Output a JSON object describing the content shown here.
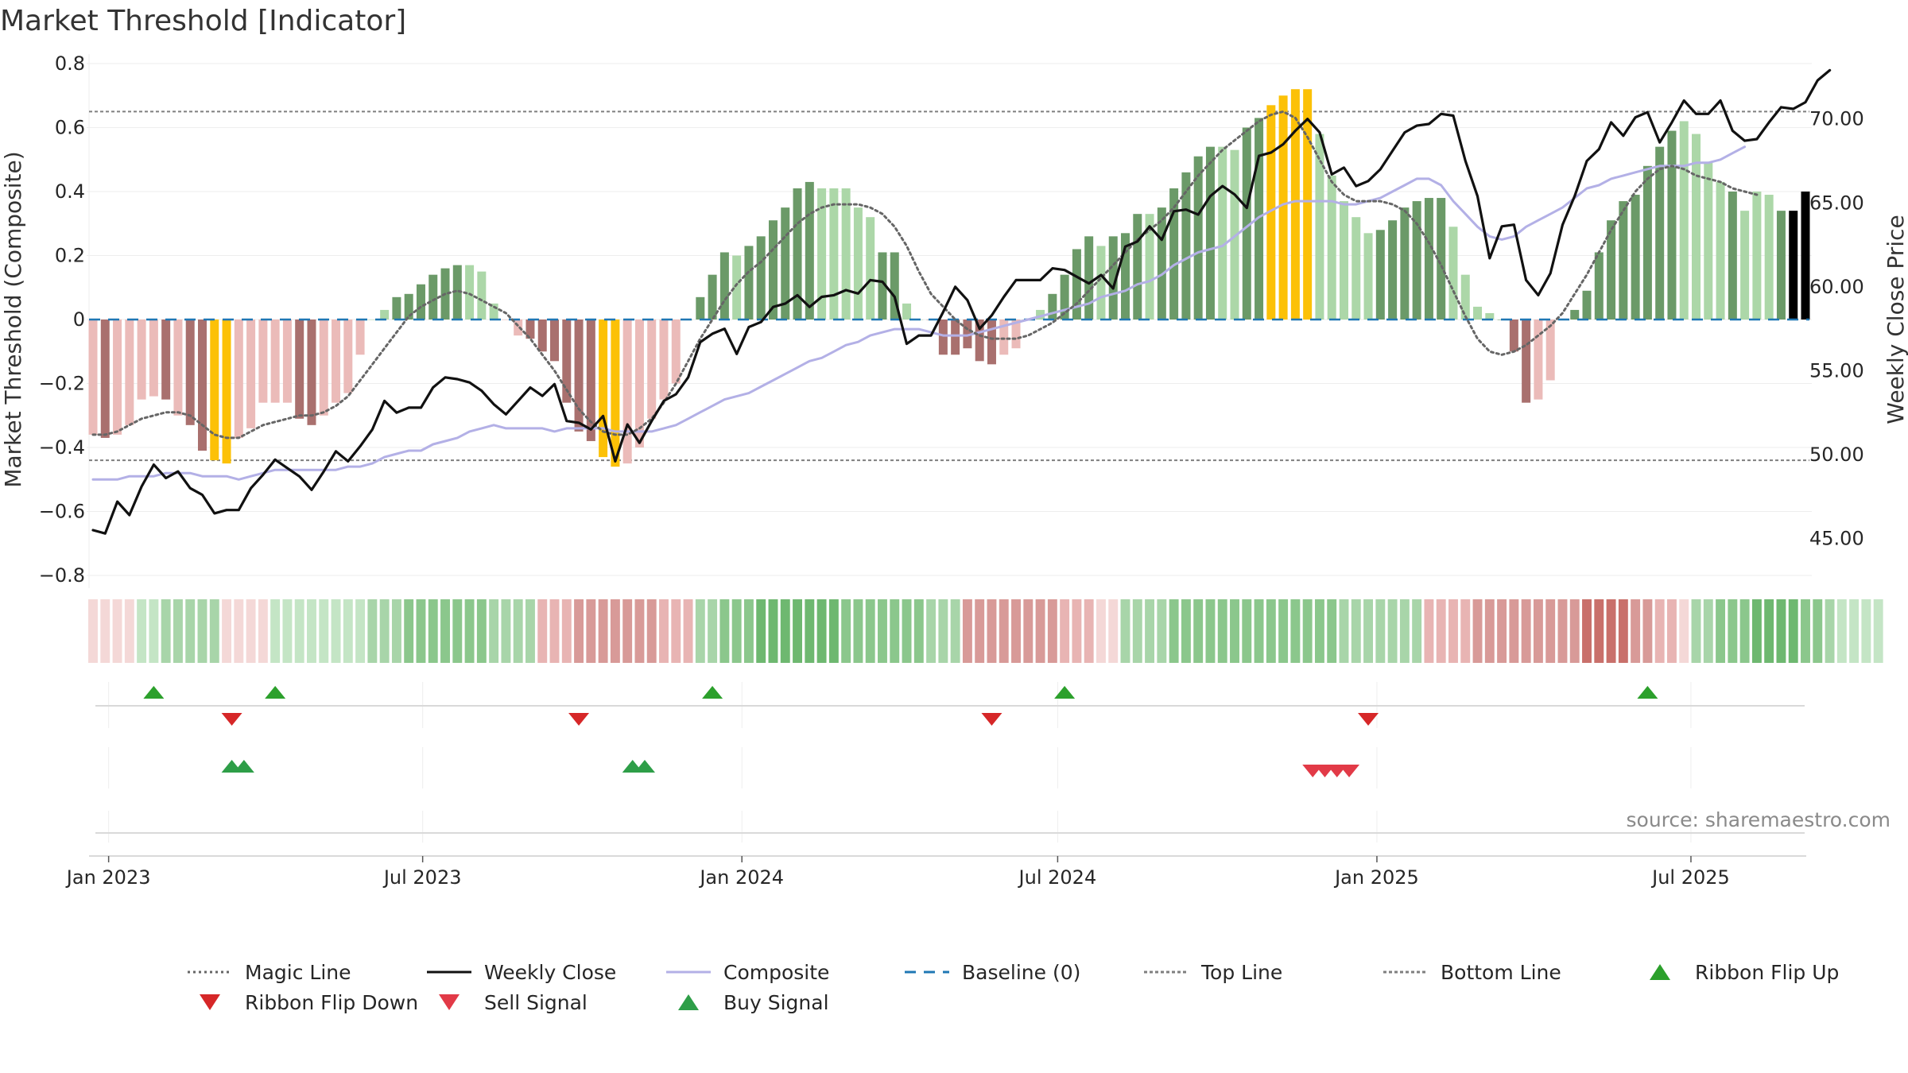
{
  "chart_data": {
    "type": "bar",
    "title": "Market Threshold [Indicator]",
    "ylabel": "Market Threshold (Composite)",
    "y2label": "Weekly Close Price",
    "ylim": [
      -0.8,
      0.8
    ],
    "y2lim": [
      42.8,
      73.3
    ],
    "yticks": [
      "0.8",
      "0.6",
      "0.4",
      "0.2",
      "0",
      "−0.2",
      "−0.4",
      "−0.6",
      "−0.8"
    ],
    "y2ticks": [
      "70.00",
      "65.00",
      "60.00",
      "55.00",
      "50.00",
      "45.00"
    ],
    "xticks": [
      "Jan 2023",
      "Jul 2023",
      "Jan 2024",
      "Jul 2024",
      "Jan 2025",
      "Jul 2025"
    ],
    "start_date": "2022-12-23",
    "top_line": 0.65,
    "bottom_line": -0.44,
    "bars": [
      -0.36,
      -0.37,
      -0.36,
      -0.33,
      -0.25,
      -0.24,
      -0.25,
      -0.3,
      -0.33,
      -0.41,
      -0.44,
      -0.45,
      -0.37,
      -0.34,
      -0.26,
      -0.26,
      -0.26,
      -0.31,
      -0.33,
      -0.3,
      -0.26,
      -0.23,
      -0.11,
      0,
      0.03,
      0.07,
      0.08,
      0.11,
      0.14,
      0.16,
      0.17,
      0.17,
      0.15,
      0.05,
      0,
      -0.05,
      -0.06,
      -0.1,
      -0.13,
      -0.26,
      -0.35,
      -0.38,
      -0.43,
      -0.46,
      -0.45,
      -0.4,
      -0.31,
      -0.25,
      -0.2,
      0,
      0.07,
      0.14,
      0.21,
      0.2,
      0.23,
      0.26,
      0.31,
      0.35,
      0.41,
      0.43,
      0.41,
      0.41,
      0.41,
      0.35,
      0.32,
      0.21,
      0.21,
      0.05,
      0,
      0,
      -0.11,
      -0.11,
      -0.09,
      -0.13,
      -0.14,
      -0.11,
      -0.09,
      0,
      0.03,
      0.08,
      0.14,
      0.22,
      0.26,
      0.23,
      0.26,
      0.27,
      0.33,
      0.33,
      0.35,
      0.41,
      0.46,
      0.51,
      0.54,
      0.54,
      0.53,
      0.6,
      0.63,
      0.67,
      0.7,
      0.72,
      0.72,
      0.58,
      0.45,
      0.37,
      0.32,
      0.27,
      0.28,
      0.31,
      0.35,
      0.37,
      0.38,
      0.38,
      0.29,
      0.14,
      0.04,
      0.02,
      0,
      -0.1,
      -0.26,
      -0.25,
      -0.19,
      0,
      0.03,
      0.09,
      0.21,
      0.31,
      0.37,
      0.39,
      0.48,
      0.54,
      0.59,
      0.62,
      0.58,
      0.49,
      0.43,
      0.4,
      0.34,
      0.4,
      0.39,
      0.34,
      0.34,
      0.4
    ],
    "bar_colors": [
      "#ebbbb9",
      "#a9706e",
      "#ebbbb9",
      "#ebbbb9",
      "#ebbbb9",
      "#ebbbb9",
      "#a9706e",
      "#ebbbb9",
      "#a9706e",
      "#a9706e",
      "#fcc107",
      "#fcc107",
      "#ebbbb9",
      "#ebbbb9",
      "#ebbbb9",
      "#ebbbb9",
      "#ebbbb9",
      "#a9706e",
      "#a9706e",
      "#ebbbb9",
      "#ebbbb9",
      "#ebbbb9",
      "#ebbbb9",
      "#acd7a8",
      "#acd7a8",
      "#6b9a68",
      "#6b9a68",
      "#6b9a68",
      "#6b9a68",
      "#6b9a68",
      "#6b9a68",
      "#acd7a8",
      "#acd7a8",
      "#acd7a8",
      "#ebbbb9",
      "#ebbbb9",
      "#a9706e",
      "#a9706e",
      "#a9706e",
      "#a9706e",
      "#a9706e",
      "#a9706e",
      "#fcc107",
      "#fcc107",
      "#ebbbb9",
      "#ebbbb9",
      "#ebbbb9",
      "#ebbbb9",
      "#ebbbb9",
      "#6b9a68",
      "#6b9a68",
      "#6b9a68",
      "#6b9a68",
      "#acd7a8",
      "#6b9a68",
      "#6b9a68",
      "#6b9a68",
      "#6b9a68",
      "#6b9a68",
      "#6b9a68",
      "#acd7a8",
      "#acd7a8",
      "#acd7a8",
      "#acd7a8",
      "#acd7a8",
      "#6b9a68",
      "#6b9a68",
      "#acd7a8",
      "#acd7a8",
      "#a9706e",
      "#a9706e",
      "#a9706e",
      "#a9706e",
      "#a9706e",
      "#a9706e",
      "#ebbbb9",
      "#ebbbb9",
      "#6b9a68",
      "#acd7a8",
      "#6b9a68",
      "#6b9a68",
      "#6b9a68",
      "#6b9a68",
      "#acd7a8",
      "#6b9a68",
      "#6b9a68",
      "#6b9a68",
      "#acd7a8",
      "#6b9a68",
      "#6b9a68",
      "#6b9a68",
      "#6b9a68",
      "#6b9a68",
      "#acd7a8",
      "#acd7a8",
      "#6b9a68",
      "#6b9a68",
      "#fcc107",
      "#fcc107",
      "#fcc107",
      "#fcc107",
      "#acd7a8",
      "#acd7a8",
      "#acd7a8",
      "#acd7a8",
      "#acd7a8",
      "#6b9a68",
      "#6b9a68",
      "#6b9a68",
      "#6b9a68",
      "#6b9a68",
      "#6b9a68",
      "#acd7a8",
      "#acd7a8",
      "#acd7a8",
      "#acd7a8",
      "#6b9a68",
      "#a9706e",
      "#a9706e",
      "#ebbbb9",
      "#ebbbb9",
      "#acd7a8",
      "#6b9a68",
      "#6b9a68",
      "#6b9a68",
      "#6b9a68",
      "#6b9a68",
      "#6b9a68",
      "#6b9a68",
      "#6b9a68",
      "#6b9a68",
      "#acd7a8",
      "#acd7a8",
      "#acd7a8",
      "#acd7a8",
      "#6b9a68",
      "#acd7a8",
      "#acd7a8",
      "#acd7a8",
      "#6b9a68"
    ],
    "series": [
      {
        "name": "Magic Line",
        "color": "#666666",
        "style": "dotted",
        "axis": "left",
        "values": [
          -0.36,
          -0.36,
          -0.35,
          -0.33,
          -0.31,
          -0.3,
          -0.29,
          -0.29,
          -0.3,
          -0.33,
          -0.36,
          -0.37,
          -0.37,
          -0.35,
          -0.33,
          -0.32,
          -0.31,
          -0.3,
          -0.3,
          -0.29,
          -0.27,
          -0.24,
          -0.19,
          -0.14,
          -0.09,
          -0.04,
          0.01,
          0.04,
          0.06,
          0.08,
          0.09,
          0.08,
          0.06,
          0.04,
          0.02,
          -0.02,
          -0.06,
          -0.11,
          -0.16,
          -0.22,
          -0.28,
          -0.32,
          -0.35,
          -0.36,
          -0.36,
          -0.34,
          -0.31,
          -0.26,
          -0.2,
          -0.13,
          -0.06,
          0,
          0.06,
          0.11,
          0.15,
          0.18,
          0.22,
          0.26,
          0.3,
          0.33,
          0.35,
          0.36,
          0.36,
          0.36,
          0.35,
          0.33,
          0.29,
          0.23,
          0.15,
          0.08,
          0.04,
          0,
          -0.03,
          -0.05,
          -0.06,
          -0.06,
          -0.06,
          -0.05,
          -0.03,
          -0.01,
          0.02,
          0.05,
          0.09,
          0.13,
          0.17,
          0.21,
          0.25,
          0.28,
          0.31,
          0.35,
          0.4,
          0.45,
          0.49,
          0.53,
          0.56,
          0.59,
          0.62,
          0.64,
          0.65,
          0.63,
          0.57,
          0.5,
          0.43,
          0.39,
          0.37,
          0.37,
          0.37,
          0.36,
          0.34,
          0.3,
          0.24,
          0.17,
          0.09,
          0.01,
          -0.06,
          -0.1,
          -0.11,
          -0.1,
          -0.08,
          -0.05,
          -0.02,
          0.02,
          0.08,
          0.14,
          0.21,
          0.28,
          0.34,
          0.4,
          0.44,
          0.47,
          0.48,
          0.47,
          0.45,
          0.44,
          0.43,
          0.41,
          0.4,
          0.39
        ]
      },
      {
        "name": "Weekly Close",
        "color": "#111111",
        "style": "solid",
        "axis": "right",
        "values": [
          45.5,
          45.3,
          47.2,
          46.4,
          48.1,
          49.4,
          48.6,
          49.0,
          48.0,
          47.6,
          46.5,
          46.7,
          46.7,
          48.0,
          48.8,
          49.7,
          49.2,
          48.7,
          47.9,
          49.0,
          50.2,
          49.6,
          50.5,
          51.5,
          53.2,
          52.5,
          52.8,
          52.8,
          54.0,
          54.6,
          54.5,
          54.3,
          53.8,
          53.0,
          52.4,
          53.2,
          54.0,
          53.5,
          54.2,
          52.0,
          51.9,
          51.5,
          52.3,
          49.6,
          51.8,
          50.7,
          52.0,
          53.2,
          53.6,
          54.6,
          56.7,
          57.2,
          57.5,
          56.0,
          57.6,
          57.9,
          58.8,
          59.0,
          59.5,
          58.8,
          59.4,
          59.5,
          59.8,
          59.6,
          60.4,
          60.3,
          59.4,
          56.6,
          57.1,
          57.1,
          58.5,
          60.0,
          59.2,
          57.5,
          58.3,
          59.4,
          60.4,
          60.4,
          60.4,
          61.1,
          61.0,
          60.6,
          60.2,
          60.7,
          59.9,
          62.4,
          62.7,
          63.6,
          62.8,
          64.5,
          64.6,
          64.3,
          65.4,
          66.0,
          65.5,
          64.7,
          67.8,
          68.0,
          68.5,
          69.3,
          70.0,
          69.2,
          66.7,
          67.1,
          66.0,
          66.3,
          67.0,
          68.1,
          69.2,
          69.6,
          69.7,
          70.3,
          70.2,
          67.5,
          65.4,
          61.7,
          63.6,
          63.7,
          60.4,
          59.5,
          60.8,
          63.7,
          65.4,
          67.5,
          68.2,
          69.8,
          69.0,
          70.1,
          70.4,
          68.6,
          69.8,
          71.1,
          70.3,
          70.3,
          71.1,
          69.3,
          68.7,
          68.8,
          69.8,
          70.7,
          70.6,
          71.0,
          72.3,
          72.9
        ]
      },
      {
        "name": "Composite",
        "color": "#b3b0e6",
        "style": "solid",
        "axis": "left",
        "values": [
          -0.5,
          -0.5,
          -0.5,
          -0.49,
          -0.49,
          -0.49,
          -0.48,
          -0.48,
          -0.48,
          -0.49,
          -0.49,
          -0.49,
          -0.5,
          -0.49,
          -0.48,
          -0.47,
          -0.47,
          -0.47,
          -0.47,
          -0.47,
          -0.47,
          -0.46,
          -0.46,
          -0.45,
          -0.43,
          -0.42,
          -0.41,
          -0.41,
          -0.39,
          -0.38,
          -0.37,
          -0.35,
          -0.34,
          -0.33,
          -0.34,
          -0.34,
          -0.34,
          -0.34,
          -0.35,
          -0.34,
          -0.34,
          -0.34,
          -0.34,
          -0.35,
          -0.35,
          -0.35,
          -0.35,
          -0.34,
          -0.33,
          -0.31,
          -0.29,
          -0.27,
          -0.25,
          -0.24,
          -0.23,
          -0.21,
          -0.19,
          -0.17,
          -0.15,
          -0.13,
          -0.12,
          -0.1,
          -0.08,
          -0.07,
          -0.05,
          -0.04,
          -0.03,
          -0.03,
          -0.03,
          -0.04,
          -0.05,
          -0.05,
          -0.05,
          -0.04,
          -0.03,
          -0.02,
          -0.01,
          0,
          0.01,
          0.02,
          0.03,
          0.04,
          0.05,
          0.07,
          0.08,
          0.09,
          0.11,
          0.12,
          0.14,
          0.17,
          0.19,
          0.21,
          0.22,
          0.23,
          0.26,
          0.29,
          0.32,
          0.34,
          0.36,
          0.37,
          0.37,
          0.37,
          0.37,
          0.36,
          0.36,
          0.37,
          0.38,
          0.4,
          0.42,
          0.44,
          0.44,
          0.42,
          0.37,
          0.33,
          0.29,
          0.26,
          0.25,
          0.26,
          0.29,
          0.31,
          0.33,
          0.35,
          0.38,
          0.41,
          0.42,
          0.44,
          0.45,
          0.46,
          0.47,
          0.48,
          0.48,
          0.48,
          0.49,
          0.49,
          0.5,
          0.52,
          0.54
        ]
      },
      {
        "name": "Baseline (0)",
        "color": "#1f77b4",
        "style": "dashed"
      },
      {
        "name": "Top Line",
        "color": "#7f7f7f",
        "style": "dotted"
      },
      {
        "name": "Bottom Line",
        "color": "#7f7f7f",
        "style": "dotted"
      }
    ],
    "ribbon_colors": [
      "#f4d8d7",
      "#f4d8d7",
      "#f4d8d7",
      "#f4d8d7",
      "#c4e5c5",
      "#c4e5c5",
      "#a8d5a9",
      "#a8d5a9",
      "#a8d5a9",
      "#a8d5a9",
      "#a8d5a9",
      "#f4d8d7",
      "#f4d8d7",
      "#f4d8d7",
      "#f4d8d7",
      "#c4e5c5",
      "#c4e5c5",
      "#c4e5c5",
      "#c4e5c5",
      "#c4e5c5",
      "#c4e5c5",
      "#c4e5c5",
      "#c4e5c5",
      "#a8d5a9",
      "#a8d5a9",
      "#a8d5a9",
      "#8bc78c",
      "#8bc78c",
      "#8bc78c",
      "#8bc78c",
      "#8bc78c",
      "#8bc78c",
      "#8bc78c",
      "#a8d5a9",
      "#a8d5a9",
      "#a8d5a9",
      "#a8d5a9",
      "#e8b4b3",
      "#e8b4b3",
      "#e8b4b3",
      "#d89a98",
      "#d89a98",
      "#d89a98",
      "#d89a98",
      "#d89a98",
      "#d89a98",
      "#d89a98",
      "#e8b4b3",
      "#e8b4b3",
      "#e8b4b3",
      "#a8d5a9",
      "#a8d5a9",
      "#8bc78c",
      "#8bc78c",
      "#8bc78c",
      "#6eb870",
      "#6eb870",
      "#6eb870",
      "#6eb870",
      "#6eb870",
      "#6eb870",
      "#6eb870",
      "#8bc78c",
      "#8bc78c",
      "#8bc78c",
      "#8bc78c",
      "#8bc78c",
      "#8bc78c",
      "#8bc78c",
      "#a8d5a9",
      "#a8d5a9",
      "#a8d5a9",
      "#d89a98",
      "#d89a98",
      "#d89a98",
      "#d89a98",
      "#d89a98",
      "#d89a98",
      "#d89a98",
      "#d89a98",
      "#e8b4b3",
      "#e8b4b3",
      "#e8b4b3",
      "#f4d8d7",
      "#f4d8d7",
      "#a8d5a9",
      "#a8d5a9",
      "#a8d5a9",
      "#a8d5a9",
      "#8bc78c",
      "#8bc78c",
      "#8bc78c",
      "#8bc78c",
      "#8bc78c",
      "#8bc78c",
      "#8bc78c",
      "#8bc78c",
      "#8bc78c",
      "#8bc78c",
      "#8bc78c",
      "#8bc78c",
      "#8bc78c",
      "#8bc78c",
      "#a8d5a9",
      "#a8d5a9",
      "#a8d5a9",
      "#a8d5a9",
      "#a8d5a9",
      "#a8d5a9",
      "#a8d5a9",
      "#e8b4b3",
      "#e8b4b3",
      "#e8b4b3",
      "#e8b4b3",
      "#d89a98",
      "#d89a98",
      "#d89a98",
      "#d89a98",
      "#d89a98",
      "#d89a98",
      "#d89a98",
      "#d89a98",
      "#d89a98",
      "#c9706b",
      "#c9706b",
      "#c9706b",
      "#c9706b",
      "#d89a98",
      "#d89a98",
      "#e8b4b3",
      "#e8b4b3",
      "#f4d8d7",
      "#a8d5a9",
      "#a8d5a9",
      "#8bc78c",
      "#8bc78c",
      "#8bc78c",
      "#6eb870",
      "#6eb870",
      "#6eb870",
      "#6eb870",
      "#8bc78c",
      "#8bc78c",
      "#a8d5a9",
      "#c4e5c5",
      "#c4e5c5",
      "#c4e5c5",
      "#c4e5c5"
    ],
    "ribbon_flip_up": [
      "2023-01-27",
      "2023-04-07",
      "2023-12-15",
      "2024-07-05",
      "2025-06-06"
    ],
    "ribbon_flip_down": [
      "2023-03-13",
      "2023-09-29",
      "2024-05-24",
      "2024-12-27"
    ],
    "buy_signals": [
      "2023-03-13",
      "2023-03-20",
      "2023-10-30",
      "2023-11-06"
    ],
    "sell_signals": [
      "2024-11-25",
      "2024-12-02",
      "2024-12-09",
      "2024-12-16"
    ],
    "source": "source: sharemaestro.com",
    "legend_position": "bottom",
    "legend": [
      {
        "label": "Magic Line",
        "kind": "line",
        "color": "#666666",
        "dash": "3,4"
      },
      {
        "label": "Weekly Close",
        "kind": "line",
        "color": "#111111",
        "dash": ""
      },
      {
        "label": "Composite",
        "kind": "line",
        "color": "#b3b0e6",
        "dash": ""
      },
      {
        "label": "Baseline (0)",
        "kind": "line",
        "color": "#1f77b4",
        "dash": "14,10"
      },
      {
        "label": "Top Line",
        "kind": "line",
        "color": "#7f7f7f",
        "dash": "4,3"
      },
      {
        "label": "Bottom Line",
        "kind": "line",
        "color": "#7f7f7f",
        "dash": "4,3"
      },
      {
        "label": "Ribbon Flip Up",
        "kind": "up",
        "color": "#2ca02c"
      },
      {
        "label": "Ribbon Flip Down",
        "kind": "down",
        "color": "#d62728"
      },
      {
        "label": "Sell Signal",
        "kind": "down",
        "color": "#e23a47"
      },
      {
        "label": "Buy Signal",
        "kind": "up",
        "color": "#2e9e48"
      }
    ]
  }
}
